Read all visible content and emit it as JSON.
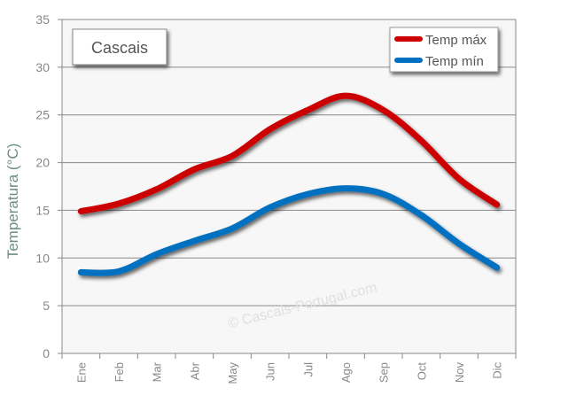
{
  "chart_data": {
    "type": "line",
    "title": "Cascais",
    "ylabel": "Temperatura (°C)",
    "xlabel": "",
    "ylim": [
      0,
      35
    ],
    "yticks": [
      0,
      5,
      10,
      15,
      20,
      25,
      30,
      35
    ],
    "grid": true,
    "legend_position": "top-right",
    "watermark": "© Cascais-Portugal.com",
    "categories": [
      "Ene",
      "Feb",
      "Mar",
      "Abr",
      "May",
      "Jun",
      "Jul",
      "Ago",
      "Sep",
      "Oct",
      "Nov",
      "Dic"
    ],
    "series": [
      {
        "name": "Temp máx",
        "color": "#cc0000",
        "values": [
          14.9,
          15.7,
          17.2,
          19.3,
          20.7,
          23.5,
          25.5,
          27.0,
          25.5,
          22.3,
          18.3,
          15.6
        ]
      },
      {
        "name": "Temp mín",
        "color": "#0070c0",
        "values": [
          8.5,
          8.6,
          10.4,
          11.8,
          13.1,
          15.3,
          16.7,
          17.3,
          16.7,
          14.5,
          11.5,
          9.0
        ]
      }
    ]
  }
}
